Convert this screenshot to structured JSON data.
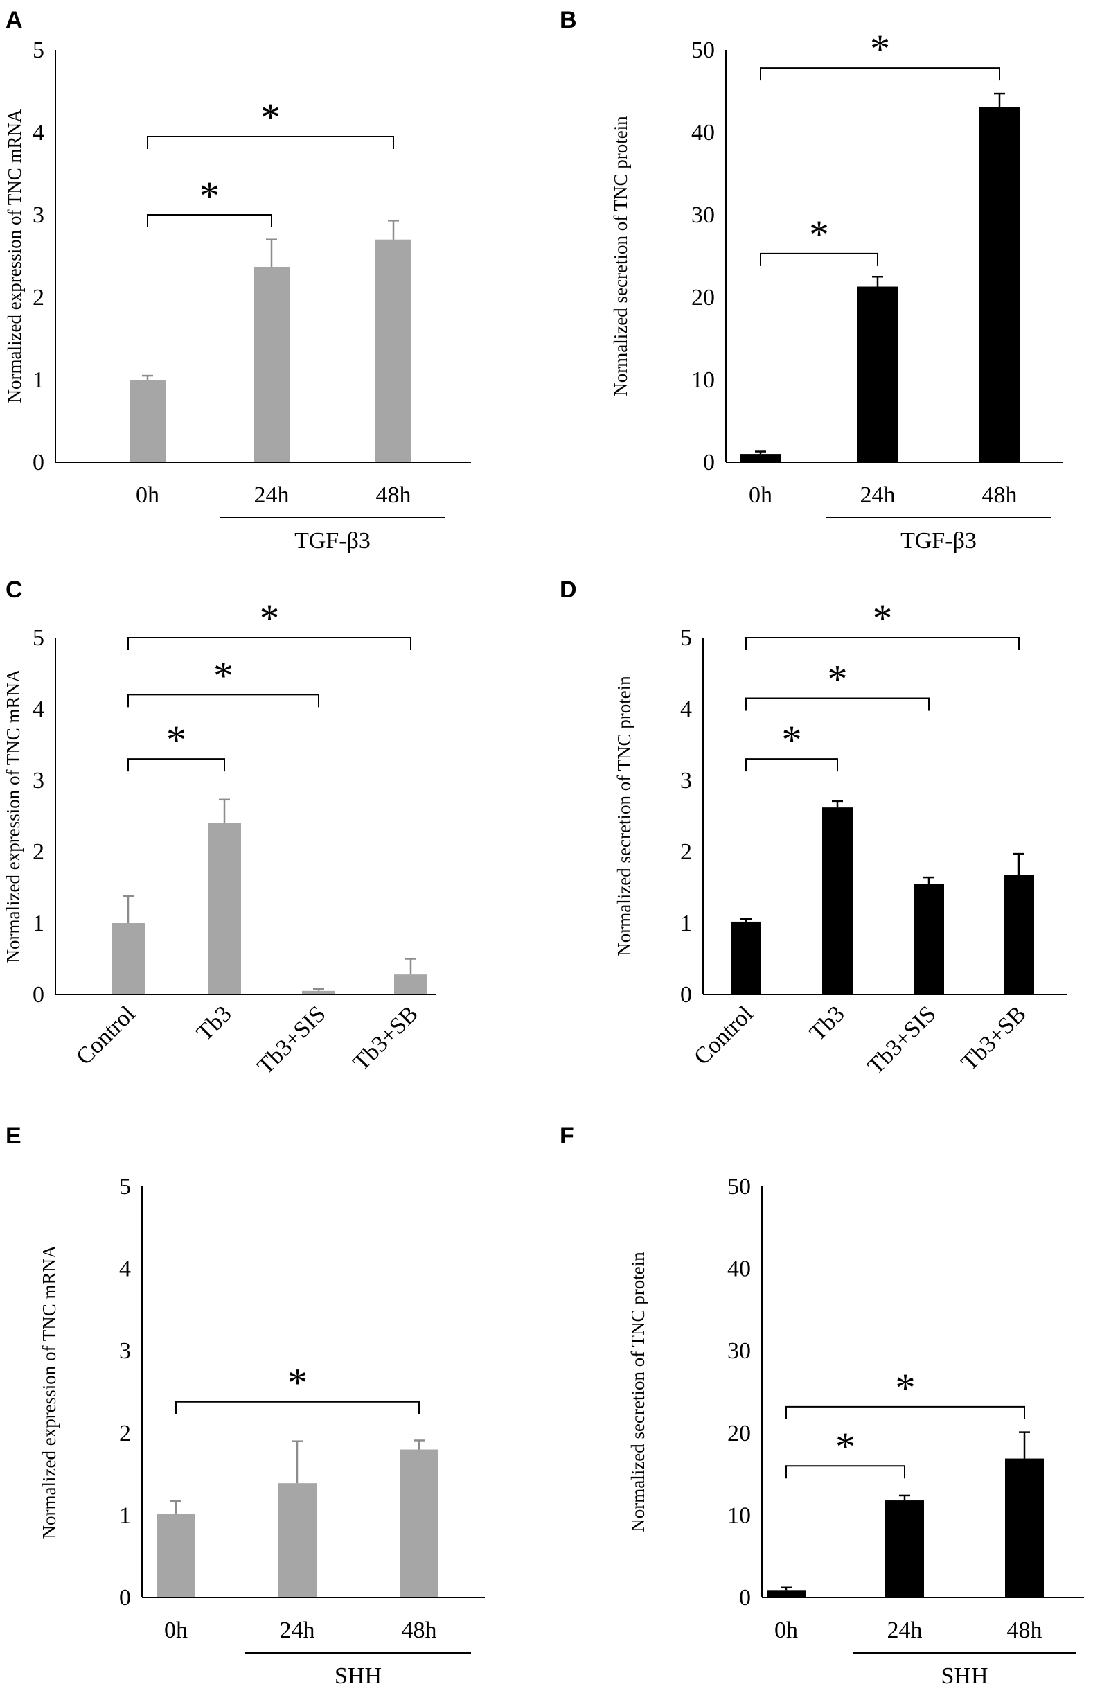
{
  "figure": {
    "panel_labels": [
      "A",
      "B",
      "C",
      "D",
      "E",
      "F"
    ]
  },
  "colors": {
    "gray_bar": "#a6a6a6",
    "black_bar": "#000000",
    "axis": "#000000"
  },
  "chart_data": [
    {
      "panel": "A",
      "type": "bar",
      "title": "",
      "ylabel": "Normalized expression of TNC mRNA",
      "xlabel": "",
      "categories": [
        "0h",
        "24h",
        "48h"
      ],
      "values": [
        1.0,
        2.37,
        2.7
      ],
      "errors": [
        0.05,
        0.33,
        0.23
      ],
      "ylim": [
        0,
        5
      ],
      "yticks": [
        0,
        1,
        2,
        3,
        4,
        5
      ],
      "bar_color": "gray",
      "rotate_labels": false,
      "group_labels": [
        {
          "text": "TGF-β3",
          "from": 1,
          "to": 2
        }
      ],
      "significance": [
        {
          "from": 0,
          "to": 1,
          "label": "*",
          "level": 3.0
        },
        {
          "from": 0,
          "to": 2,
          "label": "*",
          "level": 3.95
        }
      ]
    },
    {
      "panel": "B",
      "type": "bar",
      "title": "",
      "ylabel": "Normalized secretion of TNC protein",
      "xlabel": "",
      "categories": [
        "0h",
        "24h",
        "48h"
      ],
      "values": [
        1.0,
        21.3,
        43.1
      ],
      "errors": [
        0.3,
        1.2,
        1.6
      ],
      "ylim": [
        0,
        50
      ],
      "yticks": [
        0,
        10,
        20,
        30,
        40,
        50
      ],
      "bar_color": "black",
      "rotate_labels": false,
      "group_labels": [
        {
          "text": "TGF-β3",
          "from": 1,
          "to": 2
        }
      ],
      "significance": [
        {
          "from": 0,
          "to": 1,
          "label": "*",
          "level": 25.3
        },
        {
          "from": 0,
          "to": 2,
          "label": "*",
          "level": 47.8
        }
      ]
    },
    {
      "panel": "C",
      "type": "bar",
      "title": "",
      "ylabel": "Normalized expression of TNC mRNA",
      "xlabel": "",
      "categories": [
        "Control",
        "Tb3",
        "Tb3+SIS",
        "Tb3+SB"
      ],
      "values": [
        1.0,
        2.4,
        0.05,
        0.28
      ],
      "errors": [
        0.38,
        0.33,
        0.03,
        0.22
      ],
      "ylim": [
        0,
        5
      ],
      "yticks": [
        0,
        1,
        2,
        3,
        4,
        5
      ],
      "bar_color": "gray",
      "rotate_labels": true,
      "group_labels": [],
      "significance": [
        {
          "from": 0,
          "to": 1,
          "label": "*",
          "level": 3.3
        },
        {
          "from": 0,
          "to": 2,
          "label": "*",
          "level": 4.2
        },
        {
          "from": 0,
          "to": 3,
          "label": "*",
          "level": 5.0
        }
      ]
    },
    {
      "panel": "D",
      "type": "bar",
      "title": "",
      "ylabel": "Normalized secretion of TNC protein",
      "xlabel": "",
      "categories": [
        "Control",
        "Tb3",
        "Tb3+SIS",
        "Tb3+SB"
      ],
      "values": [
        1.02,
        2.62,
        1.55,
        1.67
      ],
      "errors": [
        0.04,
        0.09,
        0.09,
        0.3
      ],
      "ylim": [
        0,
        5
      ],
      "yticks": [
        0,
        1,
        2,
        3,
        4,
        5
      ],
      "bar_color": "black",
      "rotate_labels": true,
      "group_labels": [],
      "significance": [
        {
          "from": 0,
          "to": 1,
          "label": "*",
          "level": 3.3
        },
        {
          "from": 0,
          "to": 2,
          "label": "*",
          "level": 4.15
        },
        {
          "from": 0,
          "to": 3,
          "label": "*",
          "level": 5.0
        }
      ]
    },
    {
      "panel": "E",
      "type": "bar",
      "title": "",
      "ylabel": "Normalized expression of TNC mRNA",
      "xlabel": "",
      "categories": [
        "0h",
        "24h",
        "48h"
      ],
      "values": [
        1.02,
        1.39,
        1.8
      ],
      "errors": [
        0.15,
        0.51,
        0.11
      ],
      "ylim": [
        0,
        5
      ],
      "yticks": [
        0,
        1,
        2,
        3,
        4,
        5
      ],
      "bar_color": "gray",
      "rotate_labels": false,
      "group_labels": [
        {
          "text": "SHH",
          "from": 1,
          "to": 2
        }
      ],
      "significance": [
        {
          "from": 0,
          "to": 2,
          "label": "*",
          "level": 2.38
        }
      ]
    },
    {
      "panel": "F",
      "type": "bar",
      "title": "",
      "ylabel": "Normalized secretion of TNC protein",
      "xlabel": "",
      "categories": [
        "0h",
        "24h",
        "48h"
      ],
      "values": [
        0.9,
        11.8,
        16.9
      ],
      "errors": [
        0.3,
        0.6,
        3.2
      ],
      "ylim": [
        0,
        50
      ],
      "yticks": [
        0,
        10,
        20,
        30,
        40,
        50
      ],
      "bar_color": "black",
      "rotate_labels": false,
      "group_labels": [
        {
          "text": "SHH",
          "from": 1,
          "to": 2
        }
      ],
      "significance": [
        {
          "from": 0,
          "to": 1,
          "label": "*",
          "level": 16.0
        },
        {
          "from": 0,
          "to": 2,
          "label": "*",
          "level": 23.2
        }
      ]
    }
  ]
}
